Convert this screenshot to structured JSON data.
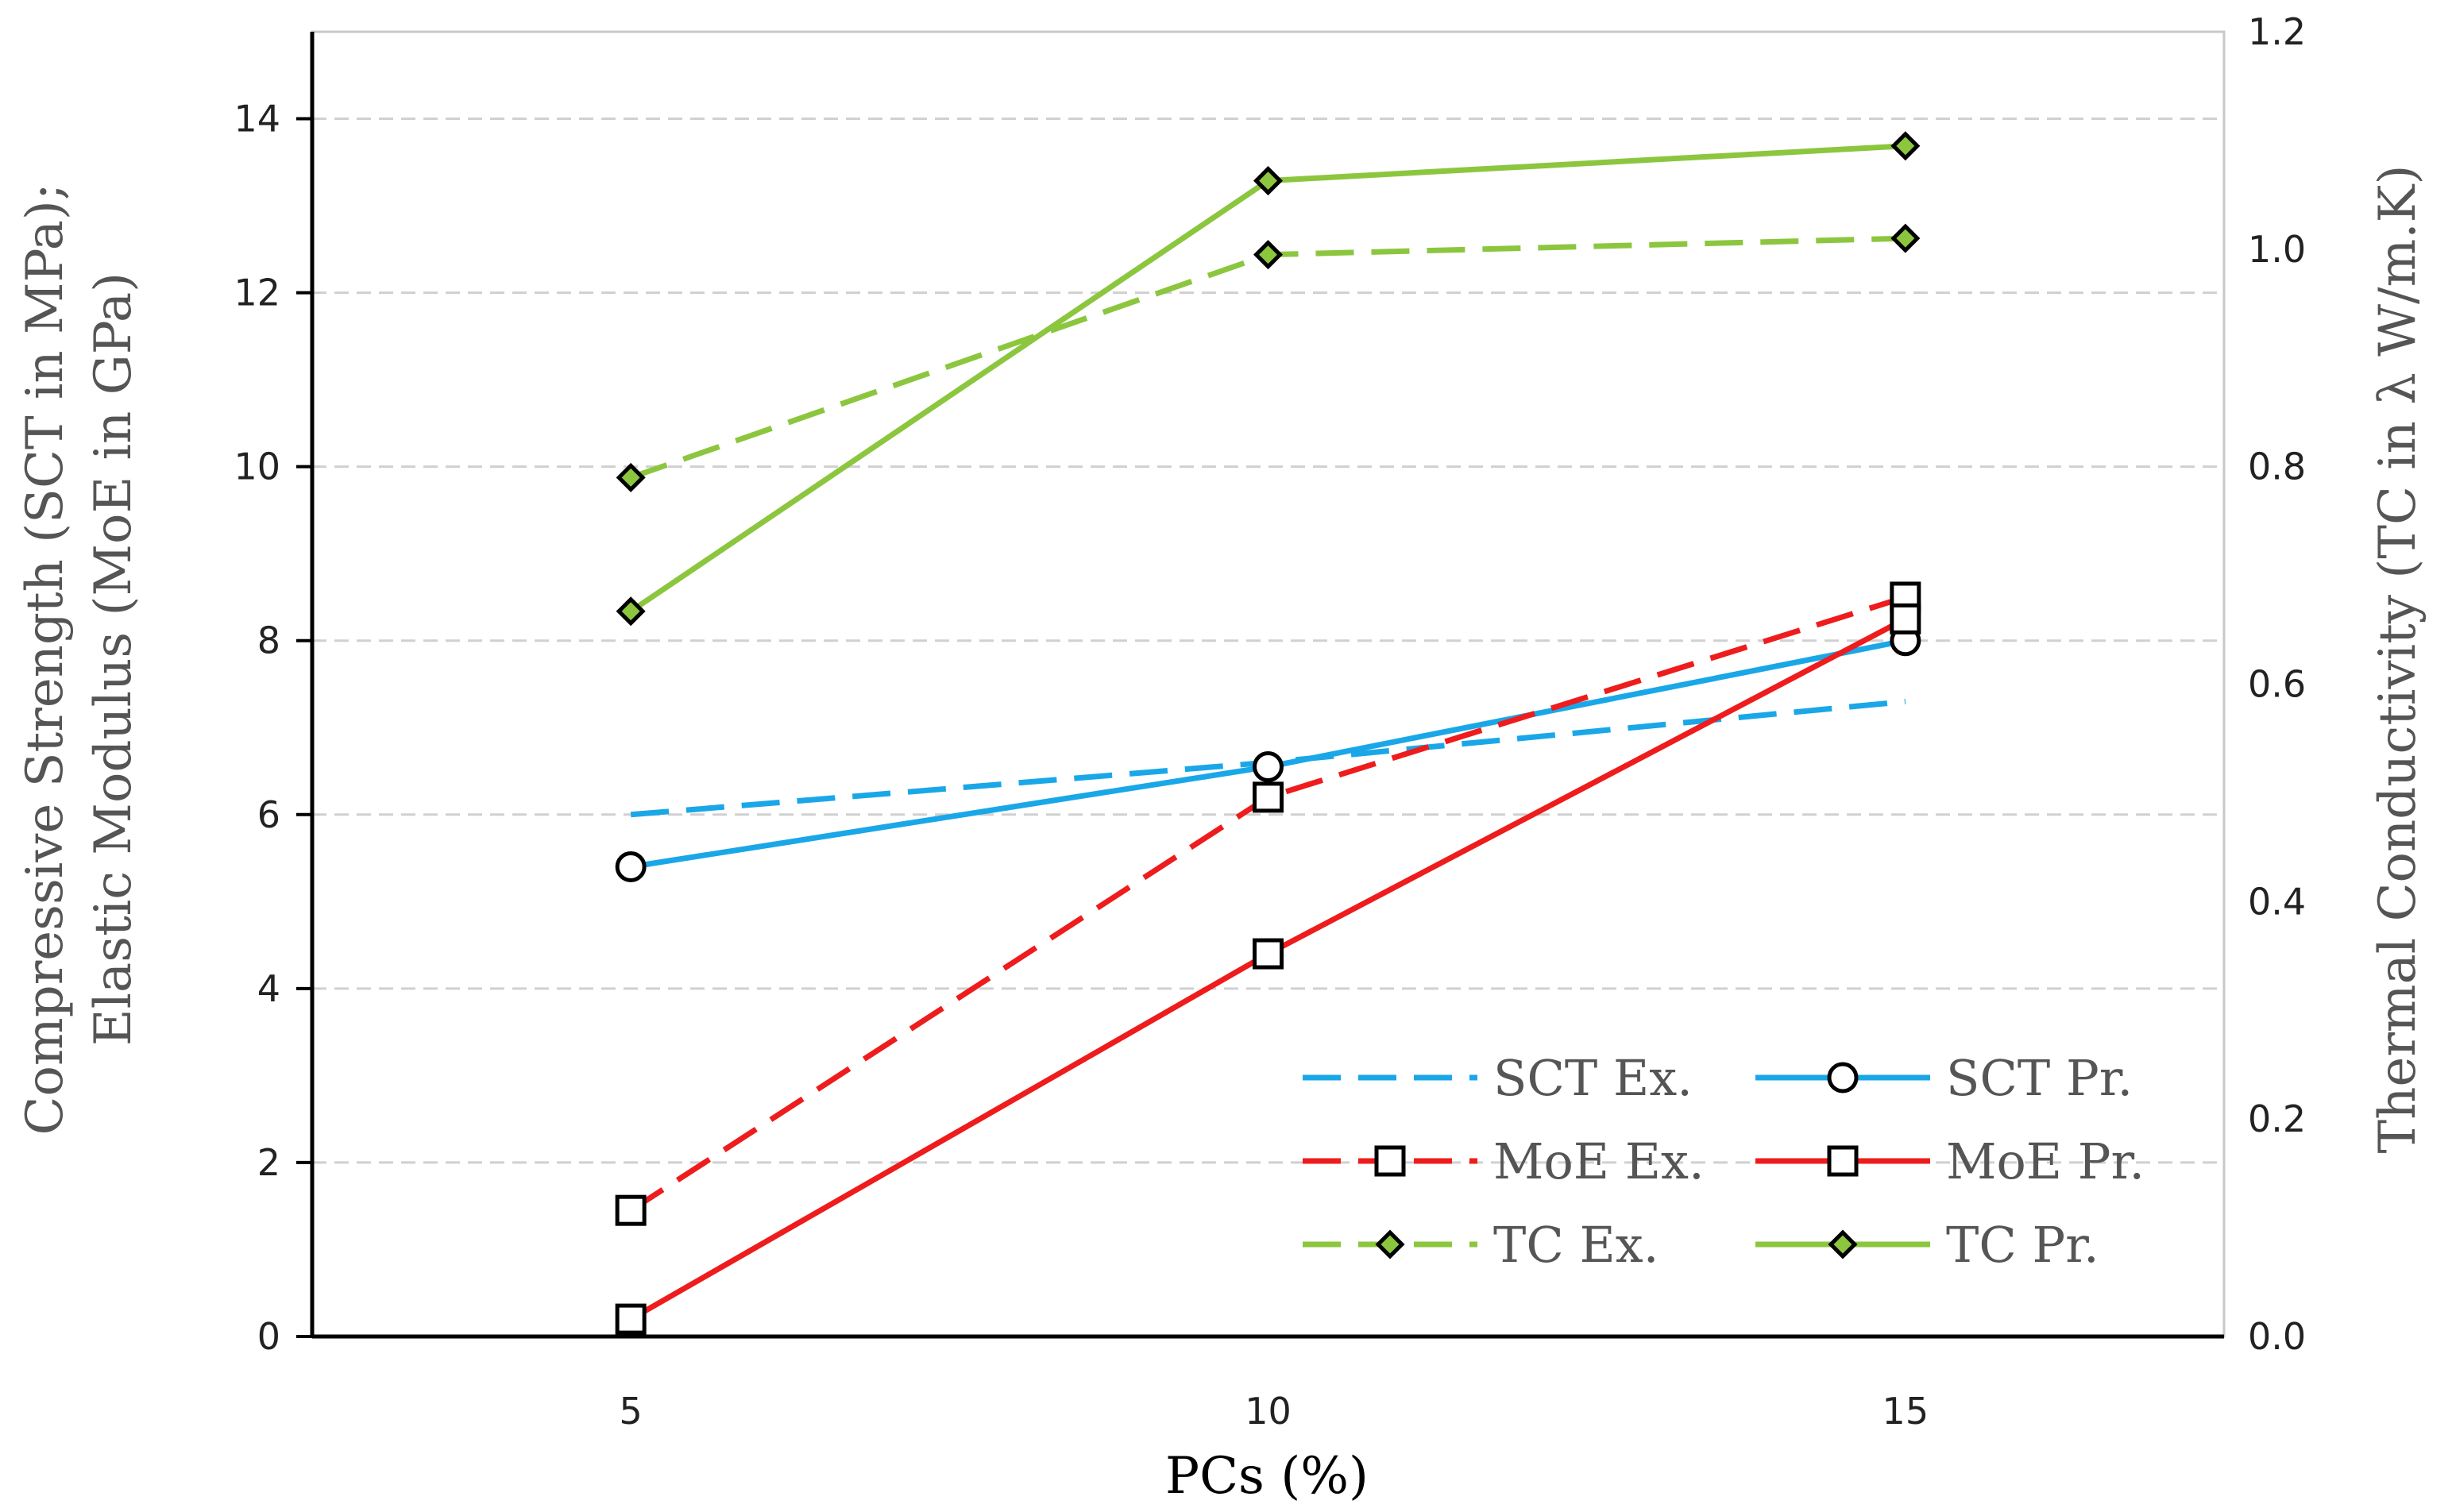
{
  "chart_data": {
    "type": "line",
    "title": "",
    "x": [
      5,
      10,
      15
    ],
    "x_tick_labels": [
      "5",
      "10",
      "15"
    ],
    "xlim": [
      2.5,
      17.5
    ],
    "xlabel": "PCs (%)",
    "ylabel_left_line1": "Compressive Strength (SCT in MPa);",
    "ylabel_left_line2": "Elastic Modulus (MoE in GPa)",
    "ylabel_right": "Thermal Conductivity (TC in λ W/m.K)",
    "ylim_left": [
      0,
      15
    ],
    "ylim_right": [
      0,
      1.2
    ],
    "y_ticks_left": [
      "0",
      "2",
      "4",
      "6",
      "8",
      "10",
      "12",
      "14"
    ],
    "y_ticks_right": [
      "0.0",
      "0.2",
      "0.4",
      "0.6",
      "0.8",
      "1.0",
      "1.2"
    ],
    "grid": "horizontal dashed",
    "legend_position": "bottom-right",
    "series": [
      {
        "name": "SCT Ex.",
        "axis": "left",
        "values": [
          6.0,
          6.6,
          7.3
        ],
        "color": "#1aa7e8",
        "dash": "dashed",
        "marker": "none"
      },
      {
        "name": "SCT Pr.",
        "axis": "left",
        "values": [
          5.4,
          6.55,
          8.0
        ],
        "color": "#1aa7e8",
        "dash": "solid",
        "marker": "circle"
      },
      {
        "name": "MoE Ex.",
        "axis": "left",
        "values": [
          1.45,
          6.2,
          8.5
        ],
        "color": "#ee1c1c",
        "dash": "dashed",
        "marker": "square"
      },
      {
        "name": "MoE Pr.",
        "axis": "left",
        "values": [
          0.2,
          4.4,
          8.25
        ],
        "color": "#ee1c1c",
        "dash": "solid",
        "marker": "square"
      },
      {
        "name": "TC  Ex.",
        "axis": "right",
        "values": [
          0.79,
          0.995,
          1.01
        ],
        "color": "#8cc63f",
        "dash": "dashed",
        "marker": "diamond"
      },
      {
        "name": "TC Pr.",
        "axis": "right",
        "values": [
          0.667,
          1.063,
          1.095
        ],
        "color": "#8cc63f",
        "dash": "solid",
        "marker": "diamond"
      }
    ]
  }
}
